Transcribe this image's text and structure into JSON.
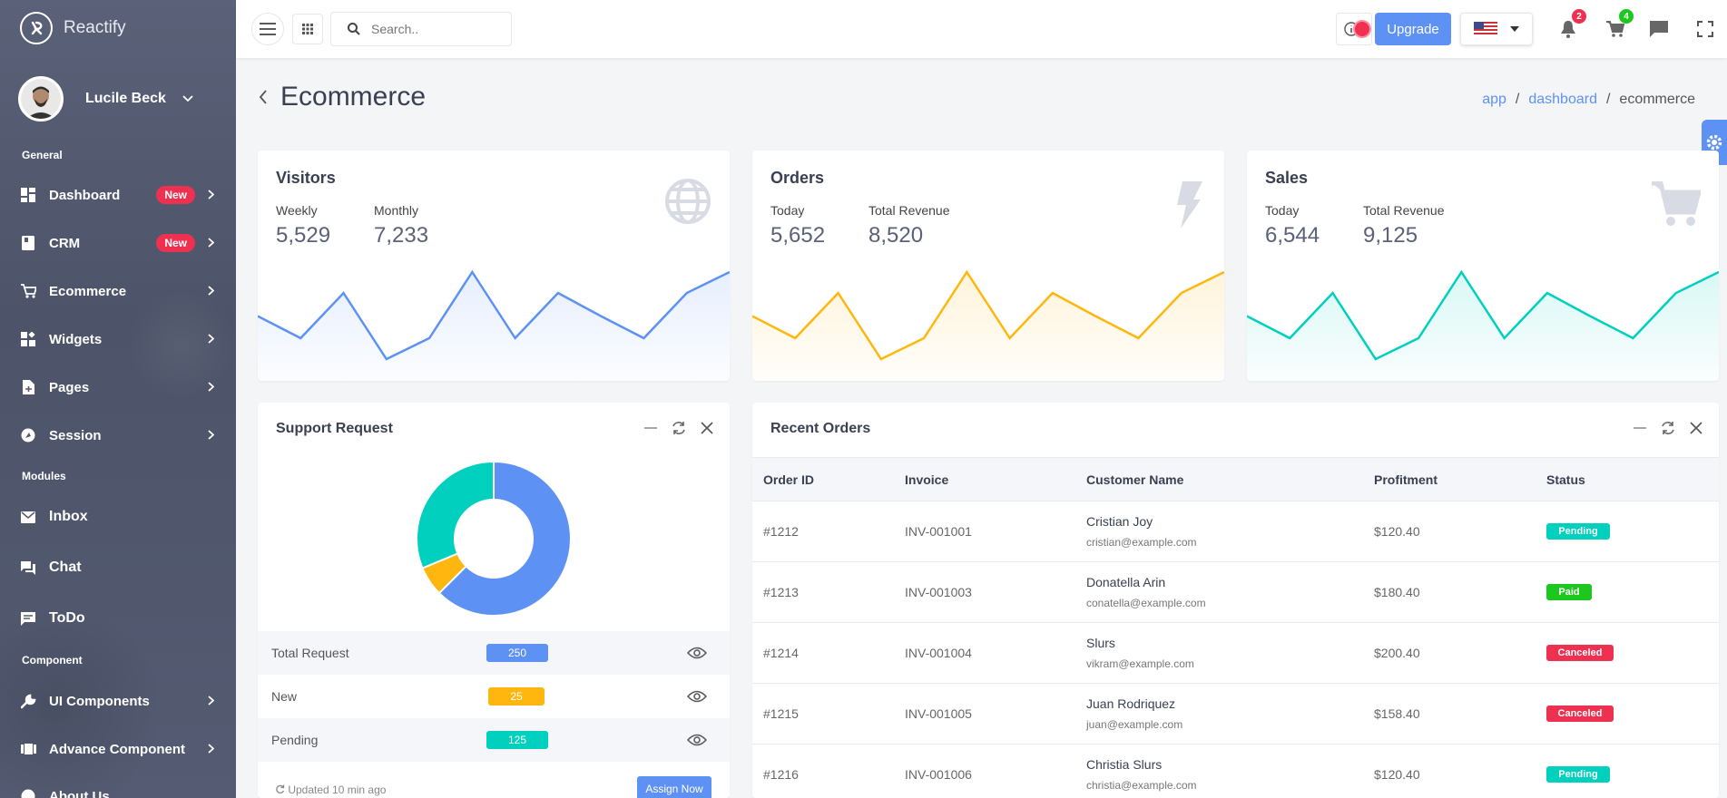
{
  "brand": {
    "name": "Reactify"
  },
  "user": {
    "name": "Lucile Beck"
  },
  "sidebar": {
    "sections": {
      "general": "General",
      "modules": "Modules",
      "component": "Component"
    },
    "items": [
      {
        "label": "Dashboard",
        "badge": "New",
        "icon": "dashboard-icon"
      },
      {
        "label": "CRM",
        "badge": "New",
        "icon": "crm-icon"
      },
      {
        "label": "Ecommerce",
        "icon": "cart-icon"
      },
      {
        "label": "Widgets",
        "icon": "widgets-icon"
      },
      {
        "label": "Pages",
        "icon": "pages-icon"
      },
      {
        "label": "Session",
        "icon": "session-icon"
      },
      {
        "label": "Inbox",
        "icon": "inbox-icon"
      },
      {
        "label": "Chat",
        "icon": "chat-icon"
      },
      {
        "label": "ToDo",
        "icon": "todo-icon"
      },
      {
        "label": "UI Components",
        "icon": "wrench-icon"
      },
      {
        "label": "Advance Component",
        "icon": "advance-icon"
      },
      {
        "label": "About Us",
        "icon": "info-icon"
      }
    ]
  },
  "header": {
    "search_placeholder": "Search..",
    "upgrade_label": "Upgrade",
    "notifications_count": "2",
    "cart_count": "4"
  },
  "page": {
    "title": "Ecommerce",
    "breadcrumb": [
      "app",
      "dashboard",
      "ecommerce"
    ]
  },
  "stats": {
    "visitors": {
      "title": "Visitors",
      "k1": "Weekly",
      "v1": "5,529",
      "k2": "Monthly",
      "v2": "7,233",
      "color": "#5d92f4"
    },
    "orders": {
      "title": "Orders",
      "k1": "Today",
      "v1": "5,652",
      "k2": "Total Revenue",
      "v2": "8,520",
      "color": "#ffb70f"
    },
    "sales": {
      "title": "Sales",
      "k1": "Today",
      "v1": "6,544",
      "k2": "Total Revenue",
      "v2": "9,125",
      "color": "#00d0bd"
    }
  },
  "chart_data": {
    "type": "line",
    "sparkline": [
      40,
      20,
      61,
      1,
      20,
      80,
      20,
      61,
      40,
      20,
      61,
      80
    ]
  },
  "support": {
    "title": "Support Request",
    "rows": [
      {
        "label": "Total Request",
        "value": "250",
        "color": "#5d92f4"
      },
      {
        "label": "New",
        "value": "25",
        "color": "#ffb70f"
      },
      {
        "label": "Pending",
        "value": "125",
        "color": "#00d0bd"
      }
    ],
    "updated": "Updated 10 min ago",
    "assign_label": "Assign Now"
  },
  "orders": {
    "title": "Recent Orders",
    "columns": [
      "Order ID",
      "Invoice",
      "Customer Name",
      "Profitment",
      "Status"
    ],
    "rows": [
      {
        "id": "#1212",
        "invoice": "INV-001001",
        "name": "Cristian Joy",
        "email": "cristian@example.com",
        "profit": "$120.40",
        "status": "Pending",
        "status_color": "#00d0bd"
      },
      {
        "id": "#1213",
        "invoice": "INV-001003",
        "name": "Donatella Arin",
        "email": "conatella@example.com",
        "profit": "$180.40",
        "status": "Paid",
        "status_color": "#1ec71e"
      },
      {
        "id": "#1214",
        "invoice": "INV-001004",
        "name": "Slurs",
        "email": "vikram@example.com",
        "profit": "$200.40",
        "status": "Canceled",
        "status_color": "#ee3150"
      },
      {
        "id": "#1215",
        "invoice": "INV-001005",
        "name": "Juan Rodriquez",
        "email": "juan@example.com",
        "profit": "$158.40",
        "status": "Canceled",
        "status_color": "#ee3150"
      },
      {
        "id": "#1216",
        "invoice": "INV-001006",
        "name": "Christia Slurs",
        "email": "christia@example.com",
        "profit": "$120.40",
        "status": "Pending",
        "status_color": "#00d0bd"
      }
    ]
  }
}
